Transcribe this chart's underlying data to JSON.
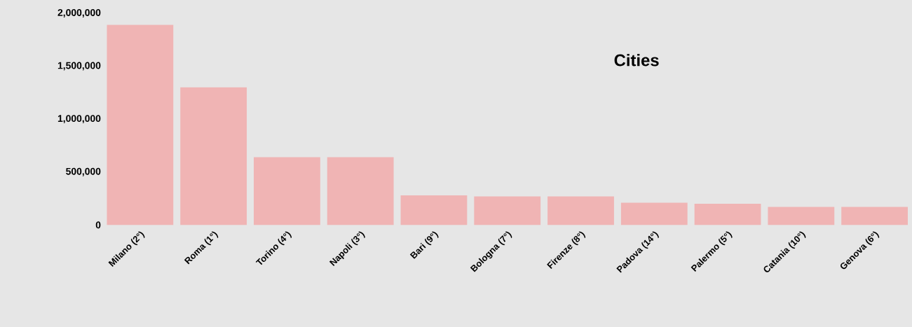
{
  "chart_data": {
    "type": "bar",
    "title": "Cities",
    "categories": [
      "Milano (2°)",
      "Roma (1°)",
      "Torino (4°)",
      "Napoli (3°)",
      "Bari (9°)",
      "Bologna (7°)",
      "Firenze (8°)",
      "Padova (14°)",
      "Palermo (5°)",
      "Catania (10°)",
      "Genova (6°)"
    ],
    "values": [
      1890000,
      1300000,
      640000,
      640000,
      280000,
      270000,
      270000,
      210000,
      200000,
      170000,
      170000
    ],
    "color": "#f0b4b4",
    "ylim": [
      0,
      2000000
    ],
    "yticks": [
      {
        "value": 0,
        "label": "0"
      },
      {
        "value": 500000,
        "label": "500,000"
      },
      {
        "value": 1000000,
        "label": "1,000,000"
      },
      {
        "value": 1500000,
        "label": "1,500,000"
      },
      {
        "value": 2000000,
        "label": "2,000,000"
      }
    ],
    "grid": false
  }
}
